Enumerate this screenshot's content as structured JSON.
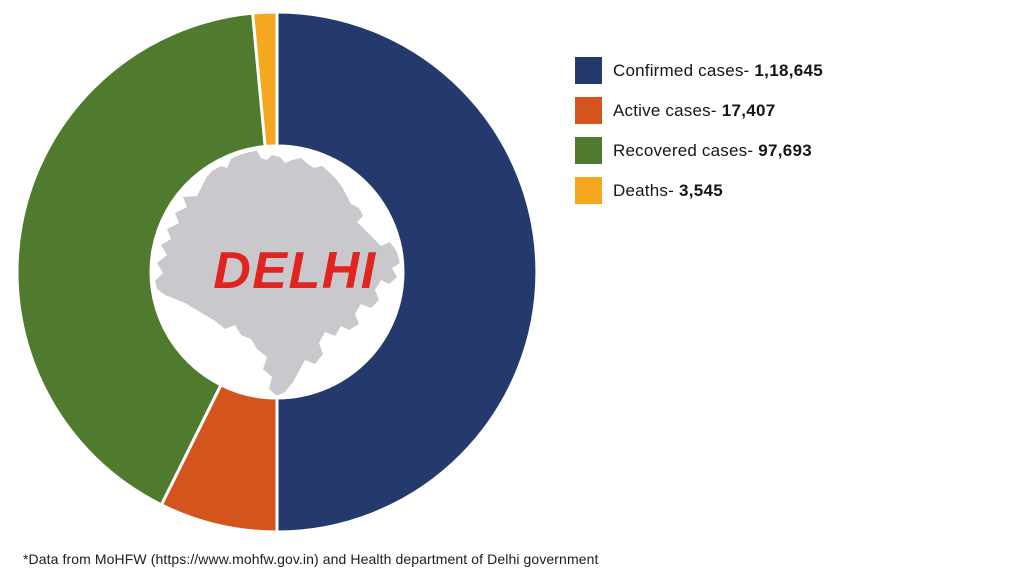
{
  "chart_data": {
    "type": "pie",
    "subtype": "donut",
    "direction": "clockwise",
    "start_angle_deg": 0,
    "legend_position": "right",
    "center_label": "DELHI",
    "center_label_color": "#E02420",
    "map_color": "#C9C8CC",
    "total": 237290,
    "slices": [
      {
        "id": "confirmed",
        "label": "Confirmed cases-",
        "value": 118645,
        "value_display": "1,18,645",
        "color": "#243A6C"
      },
      {
        "id": "active",
        "label": "Active cases-",
        "value": 17407,
        "value_display": "17,407",
        "color": "#D4541D"
      },
      {
        "id": "recovered",
        "label": "Recovered cases-",
        "value": 97693,
        "value_display": "97,693",
        "color": "#507B2F"
      },
      {
        "id": "deaths",
        "label": "Deaths-",
        "value": 3545,
        "value_display": "3,545",
        "color": "#F5A71F"
      }
    ]
  },
  "footer": {
    "note": "*Data from MoHFW (https://www.mohfw.gov.in) and Health department of Delhi government"
  }
}
